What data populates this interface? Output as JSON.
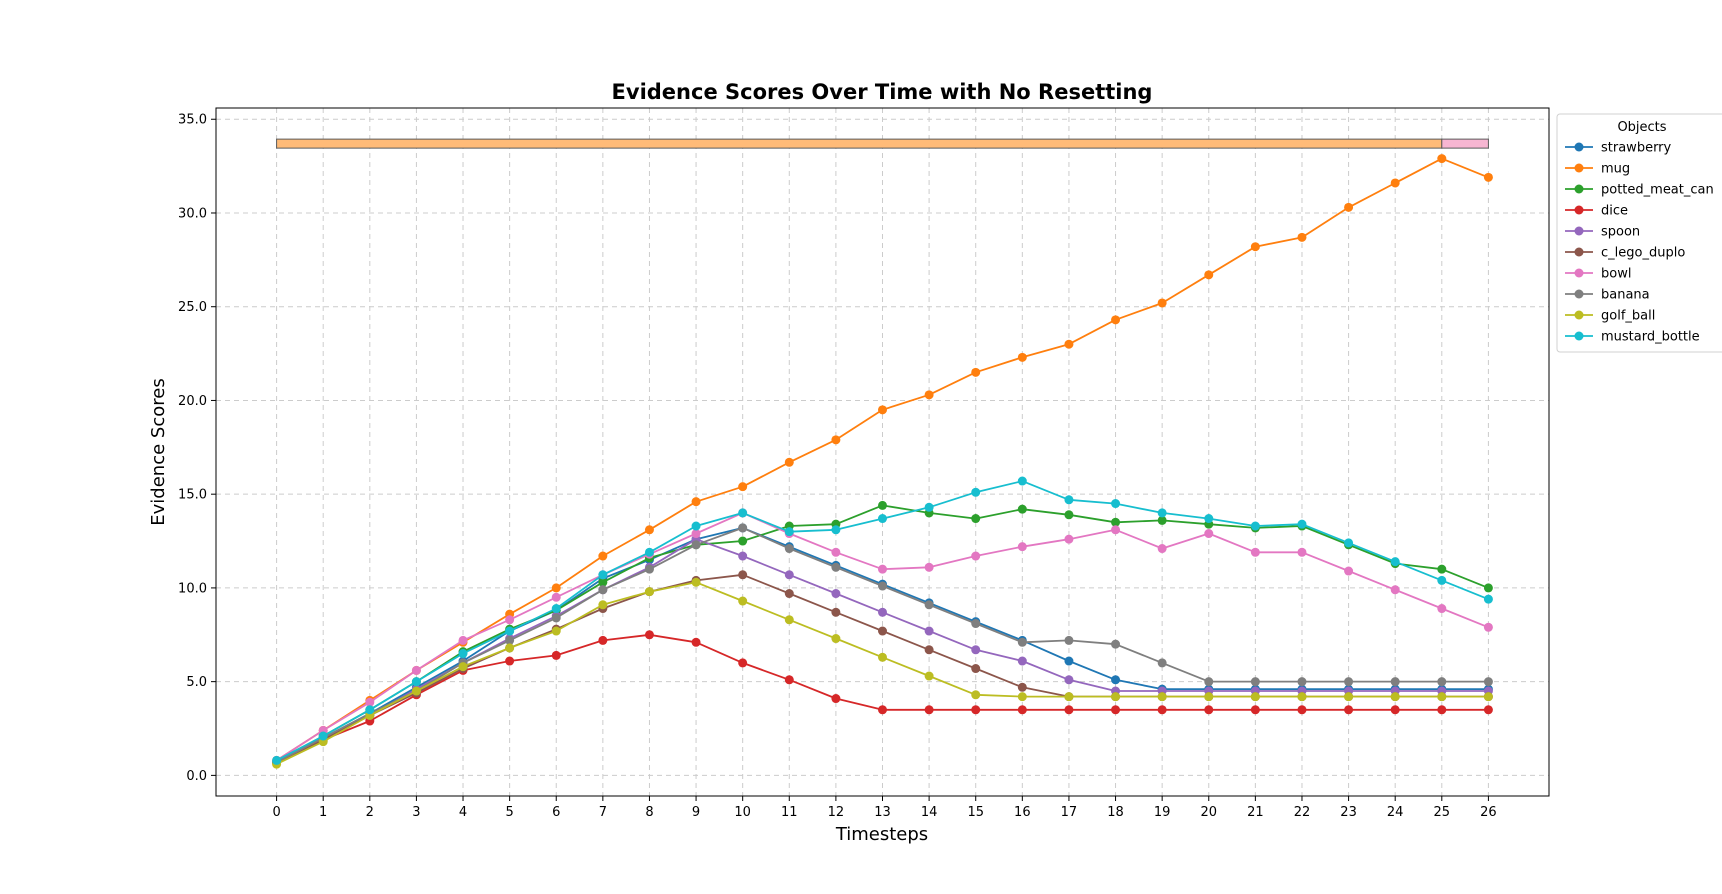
{
  "chart_data": {
    "type": "line",
    "title": "Evidence Scores Over Time with No Resetting",
    "xlabel": "Timesteps",
    "ylabel": "Evidence Scores",
    "x": [
      0,
      1,
      2,
      3,
      4,
      5,
      6,
      7,
      8,
      9,
      10,
      11,
      12,
      13,
      14,
      15,
      16,
      17,
      18,
      19,
      20,
      21,
      22,
      23,
      24,
      25,
      26
    ],
    "xticks": [
      "0",
      "1",
      "2",
      "3",
      "4",
      "5",
      "6",
      "7",
      "8",
      "9",
      "10",
      "11",
      "12",
      "13",
      "14",
      "15",
      "16",
      "17",
      "18",
      "19",
      "20",
      "21",
      "22",
      "23",
      "24",
      "25",
      "26"
    ],
    "xlim": [
      -1.3,
      27.3
    ],
    "ylim": [
      -1.1,
      35.6
    ],
    "yticks": [
      "0.0",
      "5.0",
      "10.0",
      "15.0",
      "20.0",
      "25.0",
      "30.0",
      "35.0"
    ],
    "ytick_values": [
      0,
      5,
      10,
      15,
      20,
      25,
      30,
      35
    ],
    "grid": true,
    "legend_title": "Objects",
    "legend_position": "outside-top-right",
    "series": [
      {
        "name": "strawberry",
        "color": "#1f77b4",
        "values": [
          0.7,
          2.0,
          3.3,
          4.7,
          6.1,
          7.7,
          8.8,
          10.5,
          11.5,
          12.6,
          13.2,
          12.2,
          11.2,
          10.2,
          9.2,
          8.2,
          7.2,
          6.1,
          5.1,
          4.6,
          4.6,
          4.6,
          4.6,
          4.6,
          4.6,
          4.6,
          4.6
        ]
      },
      {
        "name": "mug",
        "color": "#ff7f0e",
        "values": [
          0.8,
          2.4,
          4.0,
          5.6,
          7.1,
          8.6,
          10.0,
          11.7,
          13.1,
          14.6,
          15.4,
          16.7,
          17.9,
          19.5,
          20.3,
          21.5,
          22.3,
          23.0,
          24.3,
          25.2,
          26.7,
          28.2,
          28.7,
          30.3,
          31.6,
          32.9,
          31.9
        ]
      },
      {
        "name": "potted_meat_can",
        "color": "#2ca02c",
        "values": [
          0.7,
          2.1,
          3.5,
          5.0,
          6.6,
          7.8,
          8.8,
          10.3,
          11.6,
          12.3,
          12.5,
          13.3,
          13.4,
          14.4,
          14.0,
          13.7,
          14.2,
          13.9,
          13.5,
          13.6,
          13.4,
          13.2,
          13.3,
          12.3,
          11.3,
          11.0,
          10.0
        ]
      },
      {
        "name": "dice",
        "color": "#d62728",
        "values": [
          0.7,
          1.9,
          2.9,
          4.3,
          5.6,
          6.1,
          6.4,
          7.2,
          7.5,
          7.1,
          6.0,
          5.1,
          4.1,
          3.5,
          3.5,
          3.5,
          3.5,
          3.5,
          3.5,
          3.5,
          3.5,
          3.5,
          3.5,
          3.5,
          3.5,
          3.5,
          3.5
        ]
      },
      {
        "name": "spoon",
        "color": "#9467bd",
        "values": [
          0.7,
          2.0,
          3.2,
          4.6,
          6.0,
          7.3,
          8.5,
          9.9,
          11.1,
          12.6,
          11.7,
          10.7,
          9.7,
          8.7,
          7.7,
          6.7,
          6.1,
          5.1,
          4.5,
          4.5,
          4.5,
          4.5,
          4.5,
          4.5,
          4.5,
          4.5,
          4.5
        ]
      },
      {
        "name": "c_lego_duplo",
        "color": "#8c564b",
        "values": [
          0.7,
          1.9,
          3.2,
          4.4,
          5.7,
          6.8,
          7.8,
          8.9,
          9.8,
          10.4,
          10.7,
          9.7,
          8.7,
          7.7,
          6.7,
          5.7,
          4.7,
          4.2,
          4.2,
          4.2,
          4.2,
          4.2,
          4.2,
          4.2,
          4.2,
          4.2,
          4.2
        ]
      },
      {
        "name": "bowl",
        "color": "#e377c2",
        "values": [
          0.8,
          2.4,
          3.9,
          5.6,
          7.2,
          8.3,
          9.5,
          10.7,
          11.8,
          12.9,
          14.0,
          12.9,
          11.9,
          11.0,
          11.1,
          11.7,
          12.2,
          12.6,
          13.1,
          12.1,
          12.9,
          11.9,
          11.9,
          10.9,
          9.9,
          8.9,
          7.9
        ]
      },
      {
        "name": "banana",
        "color": "#7f7f7f",
        "values": [
          0.7,
          2.0,
          3.3,
          4.5,
          6.0,
          7.2,
          8.4,
          9.9,
          11.0,
          12.3,
          13.2,
          12.1,
          11.1,
          10.1,
          9.1,
          8.1,
          7.1,
          7.2,
          7.0,
          6.0,
          5.0,
          5.0,
          5.0,
          5.0,
          5.0,
          5.0,
          5.0
        ]
      },
      {
        "name": "golf_ball",
        "color": "#bcbd22",
        "values": [
          0.6,
          1.8,
          3.2,
          4.5,
          5.8,
          6.8,
          7.7,
          9.1,
          9.8,
          10.3,
          9.3,
          8.3,
          7.3,
          6.3,
          5.3,
          4.3,
          4.2,
          4.2,
          4.2,
          4.2,
          4.2,
          4.2,
          4.2,
          4.2,
          4.2,
          4.2,
          4.2
        ]
      },
      {
        "name": "mustard_bottle",
        "color": "#17becf",
        "values": [
          0.8,
          2.1,
          3.5,
          5.0,
          6.5,
          7.7,
          8.9,
          10.7,
          11.9,
          13.3,
          14.0,
          13.0,
          13.1,
          13.7,
          14.3,
          15.1,
          15.7,
          14.7,
          14.5,
          14.0,
          13.7,
          13.3,
          13.4,
          12.4,
          11.4,
          10.4,
          9.4
        ]
      }
    ],
    "top_bar": {
      "y": 33.7,
      "segments": [
        {
          "x_start": 0,
          "x_end": 25,
          "color": "#ffbb78"
        },
        {
          "x_start": 25,
          "x_end": 26,
          "color": "#f7b6d2"
        }
      ]
    }
  }
}
